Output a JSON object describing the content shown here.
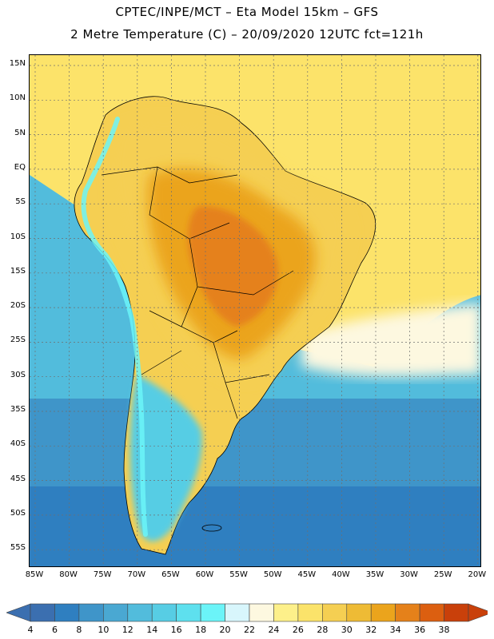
{
  "title_line1": "CPTEC/INPE/MCT –  Eta Model 15km – GFS",
  "title_line2": "2 Metre Temperature (C) – 20/09/2020 12UTC fct=121h",
  "lat_labels": [
    "15N",
    "10N",
    "5N",
    "EQ",
    "5S",
    "10S",
    "15S",
    "20S",
    "25S",
    "30S",
    "35S",
    "40S",
    "45S",
    "50S",
    "55S"
  ],
  "lon_labels": [
    "85W",
    "80W",
    "75W",
    "70W",
    "65W",
    "60W",
    "55W",
    "50W",
    "45W",
    "40W",
    "35W",
    "30W",
    "25W",
    "20W"
  ],
  "colorbar": {
    "levels": [
      "4",
      "6",
      "8",
      "10",
      "12",
      "14",
      "16",
      "18",
      "20",
      "22",
      "24",
      "26",
      "28",
      "30",
      "32",
      "34",
      "36",
      "38"
    ],
    "colors": [
      "#3b6fb0",
      "#2f7fc0",
      "#3f95c9",
      "#4aa8d2",
      "#52bcdc",
      "#57cde4",
      "#5ee0ee",
      "#6bf4f8",
      "#d8f6fc",
      "#fdf8e0",
      "#fdf08a",
      "#fbe36a",
      "#f5cf52",
      "#eebb35",
      "#eba41c",
      "#e5811a",
      "#dc5f10",
      "#c9400a"
    ]
  },
  "map_colors": {
    "ocean_tropical": "#fce36a",
    "ocean_mid": "#52bcdc",
    "ocean_cool": "#3f95c9",
    "ocean_cold": "#2f7fc0",
    "land_hot": "#eba41c",
    "land_hottest": "#e5811a",
    "land_warm": "#f5cf52",
    "land_cool": "#57cde4",
    "andes": "#6bf4f8",
    "cream": "#fdf8e0"
  }
}
